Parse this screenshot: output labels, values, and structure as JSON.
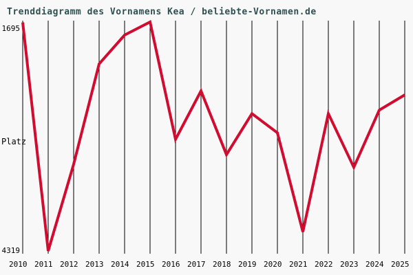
{
  "page": {
    "background_color": "#f8f8f8",
    "title_color": "#2f5050",
    "label_color": "#000000"
  },
  "chart_data": {
    "type": "line",
    "title": "Trenddiagramm des Vornamens Kea / beliebte-Vornamen.de",
    "x": [
      2010,
      2011,
      2012,
      2013,
      2014,
      2015,
      2016,
      2017,
      2018,
      2019,
      2020,
      2021,
      2022,
      2023,
      2024,
      2025
    ],
    "values": [
      1700,
      4319,
      3325,
      2175,
      1845,
      1695,
      3040,
      2485,
      3215,
      2745,
      2965,
      4100,
      2745,
      3360,
      2705,
      2530
    ],
    "ylabel": "Platz",
    "y_axis": {
      "top_label": "1695",
      "middle_label": "Platz",
      "bottom_label": "4319",
      "inverted": true
    },
    "ylim": [
      1695,
      4319
    ],
    "grid": "vertical-only",
    "legend": "none",
    "line_color": "#d00c30"
  }
}
